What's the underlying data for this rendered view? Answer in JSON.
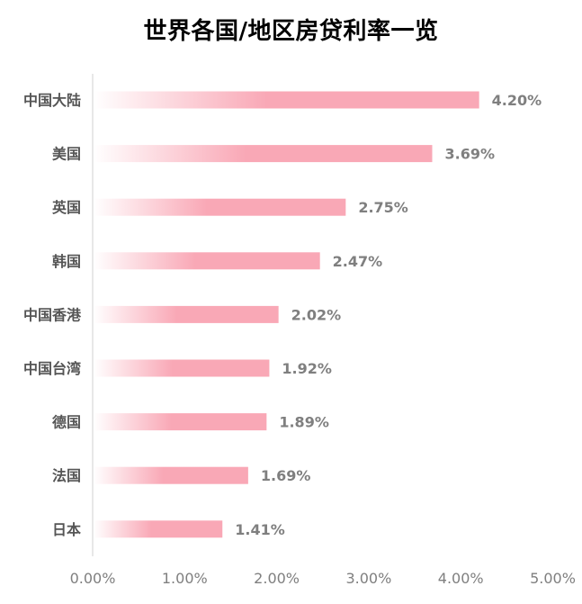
{
  "title": "世界各国/地区房贷利率一览",
  "chart_data": {
    "type": "bar",
    "orientation": "horizontal",
    "title": "世界各国/地区房贷利率一览",
    "categories": [
      "中国大陆",
      "美国",
      "英国",
      "韩国",
      "中国香港",
      "中国台湾",
      "德国",
      "法国",
      "日本"
    ],
    "values": [
      4.2,
      3.69,
      2.75,
      2.47,
      2.02,
      1.92,
      1.89,
      1.69,
      1.41
    ],
    "value_labels": [
      "4.20%",
      "3.69%",
      "2.75%",
      "2.47%",
      "2.02%",
      "1.92%",
      "1.89%",
      "1.69%",
      "1.41%"
    ],
    "xlim": [
      0,
      5
    ],
    "x_ticks": [
      0,
      1,
      2,
      3,
      4,
      5
    ],
    "x_tick_labels": [
      "0.00%",
      "1.00%",
      "2.00%",
      "3.00%",
      "4.00%",
      "5.00%"
    ],
    "xlabel": "",
    "ylabel": "",
    "grid": false,
    "bar_color": "#f9a8b6",
    "bar_fade_color": "#ffffff"
  }
}
